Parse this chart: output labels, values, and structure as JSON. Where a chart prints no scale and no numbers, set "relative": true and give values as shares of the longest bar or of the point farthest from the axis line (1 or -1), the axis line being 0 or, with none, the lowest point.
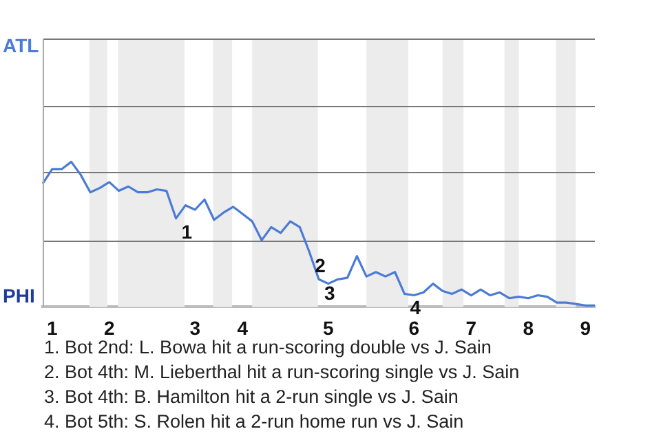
{
  "chart_data": {
    "type": "line",
    "categories": [
      null,
      "1",
      null,
      null,
      null,
      null,
      null,
      "2",
      null,
      null,
      null,
      null,
      null,
      null,
      null,
      null,
      "3",
      null,
      null,
      null,
      null,
      "4",
      null,
      null,
      null,
      null,
      null,
      null,
      null,
      null,
      "5",
      null,
      null,
      null,
      null,
      null,
      null,
      null,
      null,
      "6",
      null,
      null,
      null,
      null,
      null,
      "7",
      null,
      null,
      null,
      null,
      null,
      "8",
      null,
      null,
      null,
      null,
      null,
      "9",
      null
    ],
    "series": [
      {
        "color": "#4a7bd5",
        "values": [
          0.85,
          0.95,
          0.95,
          1,
          0.91,
          0.79,
          0.82,
          0.86,
          0.8,
          0.83,
          0.79,
          0.79,
          0.81,
          0.8,
          0.61,
          0.7,
          0.67,
          0.74,
          0.6,
          0.65,
          0.69,
          0.64,
          0.59,
          0.46,
          0.55,
          0.51,
          0.59,
          0.55,
          0.38,
          0.19,
          0.16,
          0.19,
          0.2,
          0.35,
          0.21,
          0.24,
          0.21,
          0.24,
          0.09,
          0.08,
          0.1,
          0.16,
          0.11,
          0.09,
          0.12,
          0.08,
          0.12,
          0.08,
          0.1,
          0.06,
          0.07,
          0.06,
          0.08,
          0.07,
          0.03,
          0.03,
          0.02,
          0.01,
          0.01
        ]
      }
    ],
    "relative": true,
    "ref_lines": [
      {
        "axis": "y",
        "value": 0.46,
        "color": "#777777"
      },
      {
        "axis": "y",
        "value": 0.93,
        "color": "#777777"
      },
      {
        "axis": "y",
        "value": 1.39,
        "color": "#777777"
      },
      {
        "axis": "y",
        "value": 1.85,
        "color": "#777777"
      }
    ],
    "annotations": [
      "ATL",
      "PHI",
      "1",
      "2",
      "3",
      "4",
      "1. Bot 2nd: L. Bowa hit a run-scoring double vs J. Sain",
      "2. Bot 4th: M. Lieberthal hit a run-scoring single vs J. Sain",
      "3. Bot 4th: B. Hamilton hit a 2-run single vs J. Sain",
      "4. Bot 5th: S. Rolen hit a 2-run home run vs J. Sain"
    ]
  }
}
